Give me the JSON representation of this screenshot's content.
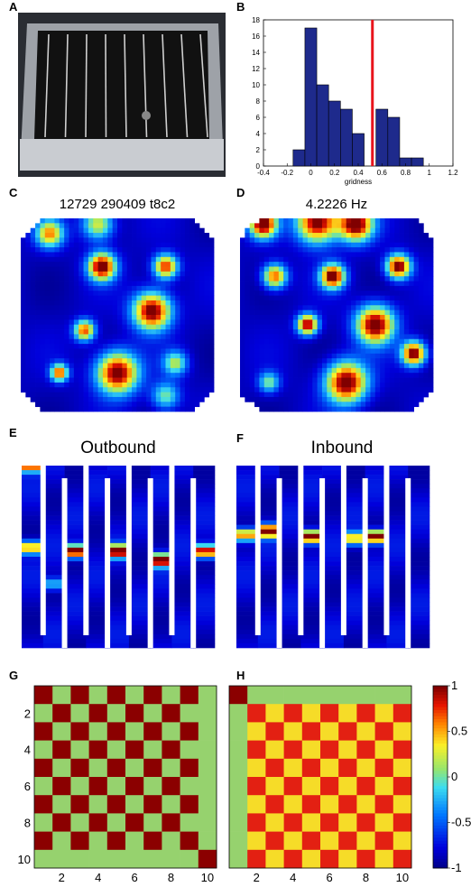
{
  "panels": {
    "A": "A",
    "B": "B",
    "C": "C",
    "D": "D",
    "E": "E",
    "F": "F",
    "G": "G",
    "H": "H"
  },
  "titles": {
    "C": "12729 290409 t8c2",
    "D": "4.2226 Hz",
    "E": "Outbound",
    "F": "Inbound"
  },
  "colors": {
    "hist_bar": "#1e2a8c",
    "threshold_line": "#e8141c",
    "jet_low": "#1a237e",
    "jet_high": "#8b0000"
  },
  "photo_A": {
    "description_visible": "photograph of maze apparatus",
    "colors": {
      "frame": "#b9bcc1",
      "interior": "#141414",
      "walls": "#d8d8d8"
    }
  },
  "chart_data": [
    {
      "type": "bar",
      "panel": "B",
      "xlabel": "gridness",
      "ylabel": "",
      "xlim": [
        -0.4,
        1.2
      ],
      "ylim": [
        0,
        18
      ],
      "xticks": [
        "-0.4",
        "-0.2",
        "0",
        "0.2",
        "0.4",
        "0.6",
        "0.8",
        "1",
        "1.2"
      ],
      "yticks": [
        "0",
        "2",
        "4",
        "6",
        "8",
        "10",
        "12",
        "14",
        "16",
        "18"
      ],
      "bin_width": 0.1,
      "bins": [
        {
          "x": -0.1,
          "value": 2
        },
        {
          "x": 0.0,
          "value": 17
        },
        {
          "x": 0.1,
          "value": 10
        },
        {
          "x": 0.2,
          "value": 8
        },
        {
          "x": 0.3,
          "value": 7
        },
        {
          "x": 0.4,
          "value": 4
        },
        {
          "x": 0.5,
          "value": 0
        },
        {
          "x": 0.6,
          "value": 7
        },
        {
          "x": 0.7,
          "value": 6
        },
        {
          "x": 0.8,
          "value": 1
        },
        {
          "x": 0.9,
          "value": 1
        }
      ],
      "threshold": 0.52
    },
    {
      "type": "heatmap",
      "panel": "C",
      "title": "12729 290409 t8c2",
      "fields": [
        {
          "x": 0.15,
          "y": 0.08,
          "r": 0.08,
          "v": 0.7
        },
        {
          "x": 0.4,
          "y": 0.03,
          "r": 0.09,
          "v": 0.6
        },
        {
          "x": 0.42,
          "y": 0.25,
          "r": 0.08,
          "v": 1.0
        },
        {
          "x": 0.75,
          "y": 0.25,
          "r": 0.07,
          "v": 0.85
        },
        {
          "x": 0.68,
          "y": 0.48,
          "r": 0.11,
          "v": 1.0
        },
        {
          "x": 0.33,
          "y": 0.58,
          "r": 0.06,
          "v": 0.8
        },
        {
          "x": 0.2,
          "y": 0.8,
          "r": 0.05,
          "v": 0.8
        },
        {
          "x": 0.5,
          "y": 0.8,
          "r": 0.12,
          "v": 1.0
        },
        {
          "x": 0.8,
          "y": 0.75,
          "r": 0.07,
          "v": 0.5
        },
        {
          "x": 0.75,
          "y": 0.92,
          "r": 0.08,
          "v": 0.45
        }
      ]
    },
    {
      "type": "heatmap",
      "panel": "D",
      "title": "4.2226 Hz",
      "fields": [
        {
          "x": 0.12,
          "y": 0.03,
          "r": 0.08,
          "v": 1.0
        },
        {
          "x": 0.4,
          "y": 0.02,
          "r": 0.12,
          "v": 1.0
        },
        {
          "x": 0.6,
          "y": 0.03,
          "r": 0.1,
          "v": 1.0
        },
        {
          "x": 0.18,
          "y": 0.3,
          "r": 0.07,
          "v": 0.8
        },
        {
          "x": 0.48,
          "y": 0.3,
          "r": 0.07,
          "v": 1.0
        },
        {
          "x": 0.82,
          "y": 0.25,
          "r": 0.07,
          "v": 1.0
        },
        {
          "x": 0.35,
          "y": 0.55,
          "r": 0.06,
          "v": 0.95
        },
        {
          "x": 0.7,
          "y": 0.55,
          "r": 0.11,
          "v": 1.0
        },
        {
          "x": 0.9,
          "y": 0.7,
          "r": 0.07,
          "v": 1.0
        },
        {
          "x": 0.15,
          "y": 0.85,
          "r": 0.06,
          "v": 0.45
        },
        {
          "x": 0.55,
          "y": 0.85,
          "r": 0.12,
          "v": 1.0
        }
      ]
    },
    {
      "type": "heatmap",
      "panel": "E",
      "title": "Outbound",
      "arms": 9,
      "peaks": [
        {
          "arm": 0,
          "y": 0.45,
          "v": 0.7
        },
        {
          "arm": 0,
          "y": 0.0,
          "v": 0.8
        },
        {
          "arm": 1,
          "y": 0.65,
          "v": 0.35
        },
        {
          "arm": 2,
          "y": 0.47,
          "v": 1.0
        },
        {
          "arm": 4,
          "y": 0.47,
          "v": 1.0
        },
        {
          "arm": 6,
          "y": 0.52,
          "v": 1.0
        },
        {
          "arm": 8,
          "y": 0.47,
          "v": 0.9
        }
      ]
    },
    {
      "type": "heatmap",
      "panel": "F",
      "title": "Inbound",
      "arms": 9,
      "peaks": [
        {
          "arm": 0,
          "y": 0.38,
          "v": 0.75
        },
        {
          "arm": 1,
          "y": 0.36,
          "v": 1.0
        },
        {
          "arm": 3,
          "y": 0.39,
          "v": 1.0
        },
        {
          "arm": 5,
          "y": 0.4,
          "v": 0.65
        },
        {
          "arm": 6,
          "y": 0.39,
          "v": 1.0
        }
      ]
    },
    {
      "type": "heatmap",
      "panel": "G",
      "size": 10,
      "yticks": [
        "2",
        "4",
        "6",
        "8",
        "10"
      ],
      "xticks": [
        "2",
        "4",
        "6",
        "8",
        "10"
      ],
      "pattern": "checkerboard",
      "diag_value": 1.0,
      "odd_value": 0.22,
      "last_row_value": 0.28,
      "last_col_value": 0.3
    },
    {
      "type": "heatmap",
      "panel": "H",
      "size": 10,
      "yticks": [
        "2",
        "4",
        "6",
        "8",
        "10"
      ],
      "xticks": [
        "2",
        "4",
        "6",
        "8",
        "10"
      ],
      "pattern": "checkerboard",
      "diag_value": 0.9,
      "odd_value": 0.32,
      "first_row_value": 0.3,
      "first_col_value": 0.3
    },
    {
      "type": "heatmap",
      "panel": "colorbar",
      "range": [
        -1,
        1
      ],
      "ticks": [
        "1",
        "0.5",
        "0",
        "-0.5",
        "-1"
      ]
    }
  ]
}
